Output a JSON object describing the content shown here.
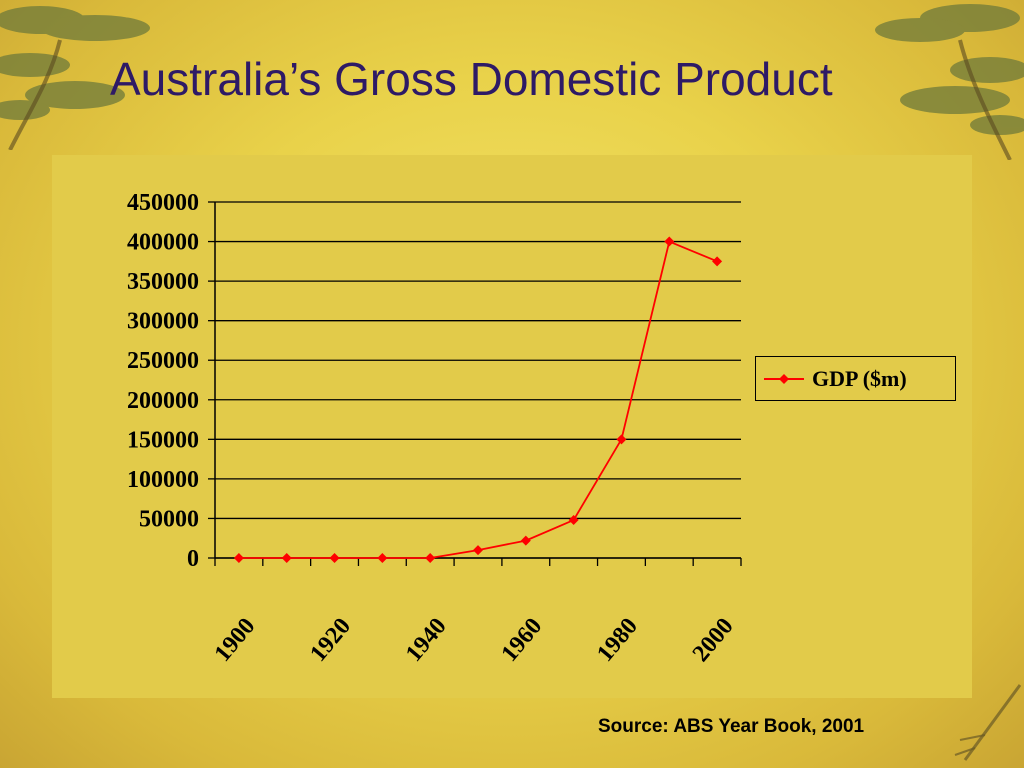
{
  "slide": {
    "title": "Australia’s Gross Domestic Product",
    "source": "Source: ABS Year Book, 2001"
  },
  "colors": {
    "series": "#ff0000",
    "title": "#2e1a66",
    "plot_bg": "#e2cb4a"
  },
  "chart_data": {
    "type": "line",
    "title": "",
    "xlabel": "",
    "ylabel": "",
    "x": [
      1905,
      1915,
      1925,
      1935,
      1945,
      1955,
      1965,
      1975,
      1985,
      1995,
      2005
    ],
    "series": [
      {
        "name": "GDP ($m)",
        "values": [
          0,
          0,
          0,
          0,
          0,
          10000,
          22000,
          48000,
          150000,
          400000,
          375000
        ]
      }
    ],
    "ylim": [
      0,
      450000
    ],
    "yticks": [
      0,
      50000,
      100000,
      150000,
      200000,
      250000,
      300000,
      350000,
      400000,
      450000
    ],
    "ytick_labels": [
      "0",
      "50000",
      "100000",
      "150000",
      "200000",
      "250000",
      "300000",
      "350000",
      "400000",
      "450000"
    ],
    "xlim": [
      1900,
      2010
    ],
    "xticks_minor": [
      1900,
      1910,
      1920,
      1930,
      1940,
      1950,
      1960,
      1970,
      1980,
      1990,
      2000,
      2010
    ],
    "xtick_labels": [
      "1900",
      "1920",
      "1940",
      "1960",
      "1980",
      "2000"
    ],
    "grid": true,
    "legend": "right"
  }
}
